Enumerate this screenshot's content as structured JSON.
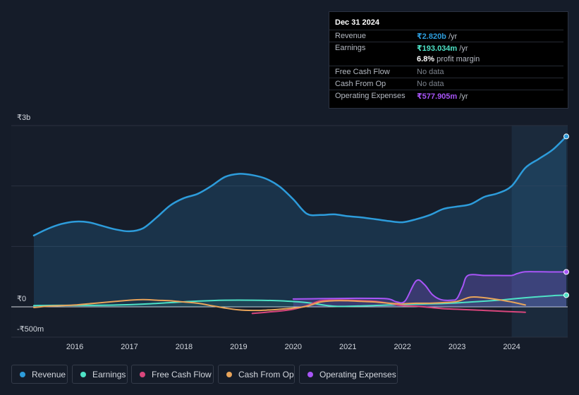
{
  "tooltip": {
    "date": "Dec 31 2024",
    "rows": [
      {
        "label": "Revenue",
        "value": "₹2.820b",
        "suffix": " /yr",
        "color": "#2d9cdb"
      },
      {
        "label": "Earnings",
        "value": "₹193.034m",
        "suffix": " /yr",
        "color": "#4ee2c6"
      },
      {
        "label": "",
        "value": "6.8%",
        "suffix": " profit margin",
        "color": "#ffffff"
      },
      {
        "label": "Free Cash Flow",
        "value": "No data",
        "suffix": "",
        "color": "#7d838d"
      },
      {
        "label": "Cash From Op",
        "value": "No data",
        "suffix": "",
        "color": "#7d838d"
      },
      {
        "label": "Operating Expenses",
        "value": "₹577.905m",
        "suffix": " /yr",
        "color": "#a855f7"
      }
    ]
  },
  "legend": [
    {
      "label": "Revenue",
      "color": "#2d9cdb"
    },
    {
      "label": "Earnings",
      "color": "#4ee2c6"
    },
    {
      "label": "Free Cash Flow",
      "color": "#d9467c"
    },
    {
      "label": "Cash From Op",
      "color": "#e8a45a"
    },
    {
      "label": "Operating Expenses",
      "color": "#a855f7"
    }
  ],
  "chart_data": {
    "type": "line",
    "title": "",
    "xlabel": "",
    "ylabel": "",
    "y_tick_labels": [
      "₹3b",
      "₹0",
      "-₹500m"
    ],
    "y_ticks": [
      3000,
      0,
      -500
    ],
    "ylim": [
      -500,
      3000
    ],
    "xlim": [
      2015.2,
      2025.0
    ],
    "x_ticks": [
      2016,
      2017,
      2018,
      2019,
      2020,
      2021,
      2022,
      2023,
      2024
    ],
    "x_tick_labels": [
      "2016",
      "2017",
      "2018",
      "2019",
      "2020",
      "2021",
      "2022",
      "2023",
      "2024"
    ],
    "forecast_shade_start": 2024.0,
    "series": [
      {
        "name": "Revenue",
        "color": "#2d9cdb",
        "fill": true,
        "x": [
          2015.25,
          2015.5,
          2015.75,
          2016.0,
          2016.25,
          2016.5,
          2016.75,
          2017.0,
          2017.25,
          2017.5,
          2017.75,
          2018.0,
          2018.25,
          2018.5,
          2018.75,
          2019.0,
          2019.25,
          2019.5,
          2019.75,
          2020.0,
          2020.25,
          2020.5,
          2020.75,
          2021.0,
          2021.25,
          2021.5,
          2021.75,
          2022.0,
          2022.25,
          2022.5,
          2022.75,
          2023.0,
          2023.25,
          2023.5,
          2023.75,
          2024.0,
          2024.25,
          2024.5,
          2024.75,
          2025.0
        ],
        "y": [
          1180,
          1290,
          1370,
          1410,
          1400,
          1340,
          1280,
          1250,
          1300,
          1480,
          1680,
          1800,
          1870,
          2000,
          2150,
          2200,
          2180,
          2120,
          1990,
          1780,
          1540,
          1520,
          1530,
          1500,
          1480,
          1450,
          1420,
          1400,
          1450,
          1520,
          1620,
          1660,
          1700,
          1820,
          1880,
          2000,
          2300,
          2450,
          2600,
          2820
        ]
      },
      {
        "name": "Earnings",
        "color": "#4ee2c6",
        "fill": true,
        "x": [
          2015.25,
          2015.75,
          2016.25,
          2016.75,
          2017.25,
          2017.75,
          2018.25,
          2018.75,
          2019.25,
          2019.75,
          2020.25,
          2020.75,
          2021.25,
          2021.75,
          2022.25,
          2022.75,
          2023.25,
          2023.75,
          2024.25,
          2024.75,
          2025.0
        ],
        "y": [
          20,
          25,
          25,
          30,
          45,
          70,
          95,
          110,
          110,
          100,
          70,
          10,
          15,
          30,
          45,
          55,
          80,
          110,
          150,
          185,
          193
        ]
      },
      {
        "name": "Free Cash Flow",
        "color": "#d9467c",
        "fill": false,
        "x": [
          2019.25,
          2019.5,
          2019.75,
          2020.0,
          2020.25,
          2020.5,
          2020.75,
          2021.0,
          2021.25,
          2021.5,
          2021.75,
          2022.0,
          2022.25,
          2022.5,
          2022.75,
          2023.0,
          2023.25,
          2023.5,
          2023.75,
          2024.0,
          2024.25
        ],
        "y": [
          -110,
          -90,
          -70,
          -40,
          20,
          100,
          110,
          110,
          100,
          90,
          60,
          20,
          10,
          -10,
          -30,
          -40,
          -50,
          -60,
          -70,
          -80,
          -90
        ]
      },
      {
        "name": "Cash From Op",
        "color": "#e8a45a",
        "fill": false,
        "x": [
          2015.25,
          2015.5,
          2015.75,
          2016.0,
          2016.25,
          2016.5,
          2016.75,
          2017.0,
          2017.25,
          2017.5,
          2017.75,
          2018.0,
          2018.25,
          2018.5,
          2018.75,
          2019.0,
          2019.25,
          2019.5,
          2019.75,
          2020.0,
          2020.25,
          2020.5,
          2020.75,
          2021.0,
          2021.25,
          2021.5,
          2021.75,
          2022.0,
          2022.25,
          2022.5,
          2022.75,
          2023.0,
          2023.25,
          2023.5,
          2023.75,
          2024.0,
          2024.25
        ],
        "y": [
          -10,
          10,
          20,
          30,
          50,
          70,
          90,
          110,
          120,
          110,
          100,
          80,
          60,
          20,
          -20,
          -50,
          -60,
          -55,
          -40,
          -20,
          10,
          80,
          100,
          100,
          90,
          80,
          60,
          50,
          60,
          60,
          70,
          90,
          160,
          150,
          120,
          80,
          30
        ]
      },
      {
        "name": "Operating Expenses",
        "color": "#a855f7",
        "fill": true,
        "x": [
          2020.0,
          2020.5,
          2021.0,
          2021.5,
          2021.75,
          2021.9,
          2022.05,
          2022.25,
          2022.4,
          2022.55,
          2022.7,
          2022.9,
          2023.0,
          2023.1,
          2023.2,
          2023.5,
          2023.75,
          2024.0,
          2024.1,
          2024.25,
          2024.5,
          2024.75,
          2025.0
        ],
        "y": [
          130,
          135,
          140,
          140,
          130,
          80,
          100,
          430,
          370,
          200,
          120,
          110,
          140,
          330,
          520,
          520,
          520,
          520,
          550,
          580,
          580,
          578,
          578
        ]
      }
    ]
  }
}
